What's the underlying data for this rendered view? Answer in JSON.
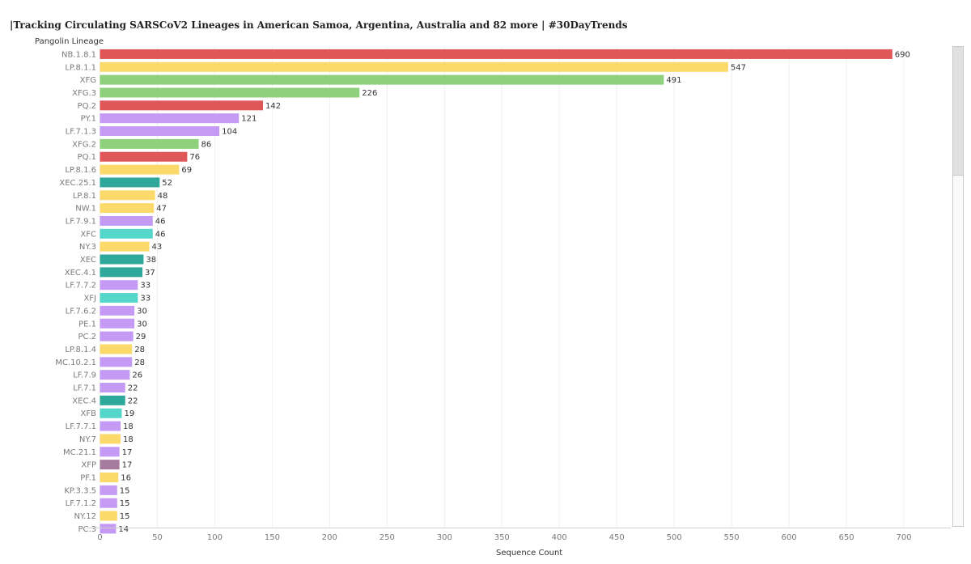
{
  "title": "|Tracking Circulating SARSCoV2 Lineages in American Samoa, Argentina, Australia and 82 more | #30DayTrends",
  "chart_data": {
    "type": "bar",
    "orientation": "horizontal",
    "ylabel": "Pangolin Lineage",
    "xlabel": "Sequence Count",
    "xlim": [
      0,
      720
    ],
    "xticks": [
      0,
      50,
      100,
      150,
      200,
      250,
      300,
      350,
      400,
      450,
      500,
      550,
      600,
      650,
      700
    ],
    "grid": "vertical",
    "bars": [
      {
        "label": "NB.1.8.1",
        "value": 690,
        "color": "#e05759"
      },
      {
        "label": "LP.8.1.1",
        "value": 547,
        "color": "#fcd96b"
      },
      {
        "label": "XFG",
        "value": 491,
        "color": "#8ed07c"
      },
      {
        "label": "XFG.3",
        "value": 226,
        "color": "#8ed07c"
      },
      {
        "label": "PQ.2",
        "value": 142,
        "color": "#e05759"
      },
      {
        "label": "PY.1",
        "value": 121,
        "color": "#c49af5"
      },
      {
        "label": "LF.7.1.3",
        "value": 104,
        "color": "#c49af5"
      },
      {
        "label": "XFG.2",
        "value": 86,
        "color": "#8ed07c"
      },
      {
        "label": "PQ.1",
        "value": 76,
        "color": "#e05759"
      },
      {
        "label": "LP.8.1.6",
        "value": 69,
        "color": "#fcd96b"
      },
      {
        "label": "XEC.25.1",
        "value": 52,
        "color": "#2fa89c"
      },
      {
        "label": "LP.8.1",
        "value": 48,
        "color": "#fcd96b"
      },
      {
        "label": "NW.1",
        "value": 47,
        "color": "#fcd96b"
      },
      {
        "label": "LF.7.9.1",
        "value": 46,
        "color": "#c49af5"
      },
      {
        "label": "XFC",
        "value": 46,
        "color": "#55d6cb"
      },
      {
        "label": "NY.3",
        "value": 43,
        "color": "#fcd96b"
      },
      {
        "label": "XEC",
        "value": 38,
        "color": "#2fa89c"
      },
      {
        "label": "XEC.4.1",
        "value": 37,
        "color": "#2fa89c"
      },
      {
        "label": "LF.7.7.2",
        "value": 33,
        "color": "#c49af5"
      },
      {
        "label": "XFJ",
        "value": 33,
        "color": "#55d6cb"
      },
      {
        "label": "LF.7.6.2",
        "value": 30,
        "color": "#c49af5"
      },
      {
        "label": "PE.1",
        "value": 30,
        "color": "#c49af5"
      },
      {
        "label": "PC.2",
        "value": 29,
        "color": "#c49af5"
      },
      {
        "label": "LP.8.1.4",
        "value": 28,
        "color": "#fcd96b"
      },
      {
        "label": "MC.10.2.1",
        "value": 28,
        "color": "#c49af5"
      },
      {
        "label": "LF.7.9",
        "value": 26,
        "color": "#c49af5"
      },
      {
        "label": "LF.7.1",
        "value": 22,
        "color": "#c49af5"
      },
      {
        "label": "XEC.4",
        "value": 22,
        "color": "#2fa89c"
      },
      {
        "label": "XFB",
        "value": 19,
        "color": "#55d6cb"
      },
      {
        "label": "LF.7.7.1",
        "value": 18,
        "color": "#c49af5"
      },
      {
        "label": "NY.7",
        "value": 18,
        "color": "#fcd96b"
      },
      {
        "label": "MC.21.1",
        "value": 17,
        "color": "#c49af5"
      },
      {
        "label": "XFP",
        "value": 17,
        "color": "#a67c9e"
      },
      {
        "label": "PF.1",
        "value": 16,
        "color": "#fcd96b"
      },
      {
        "label": "KP.3.3.5",
        "value": 15,
        "color": "#c49af5"
      },
      {
        "label": "LF.7.1.2",
        "value": 15,
        "color": "#c49af5"
      },
      {
        "label": "NY.12",
        "value": 15,
        "color": "#fcd96b"
      },
      {
        "label": "PC.3",
        "value": 14,
        "color": "#c49af5"
      }
    ]
  }
}
